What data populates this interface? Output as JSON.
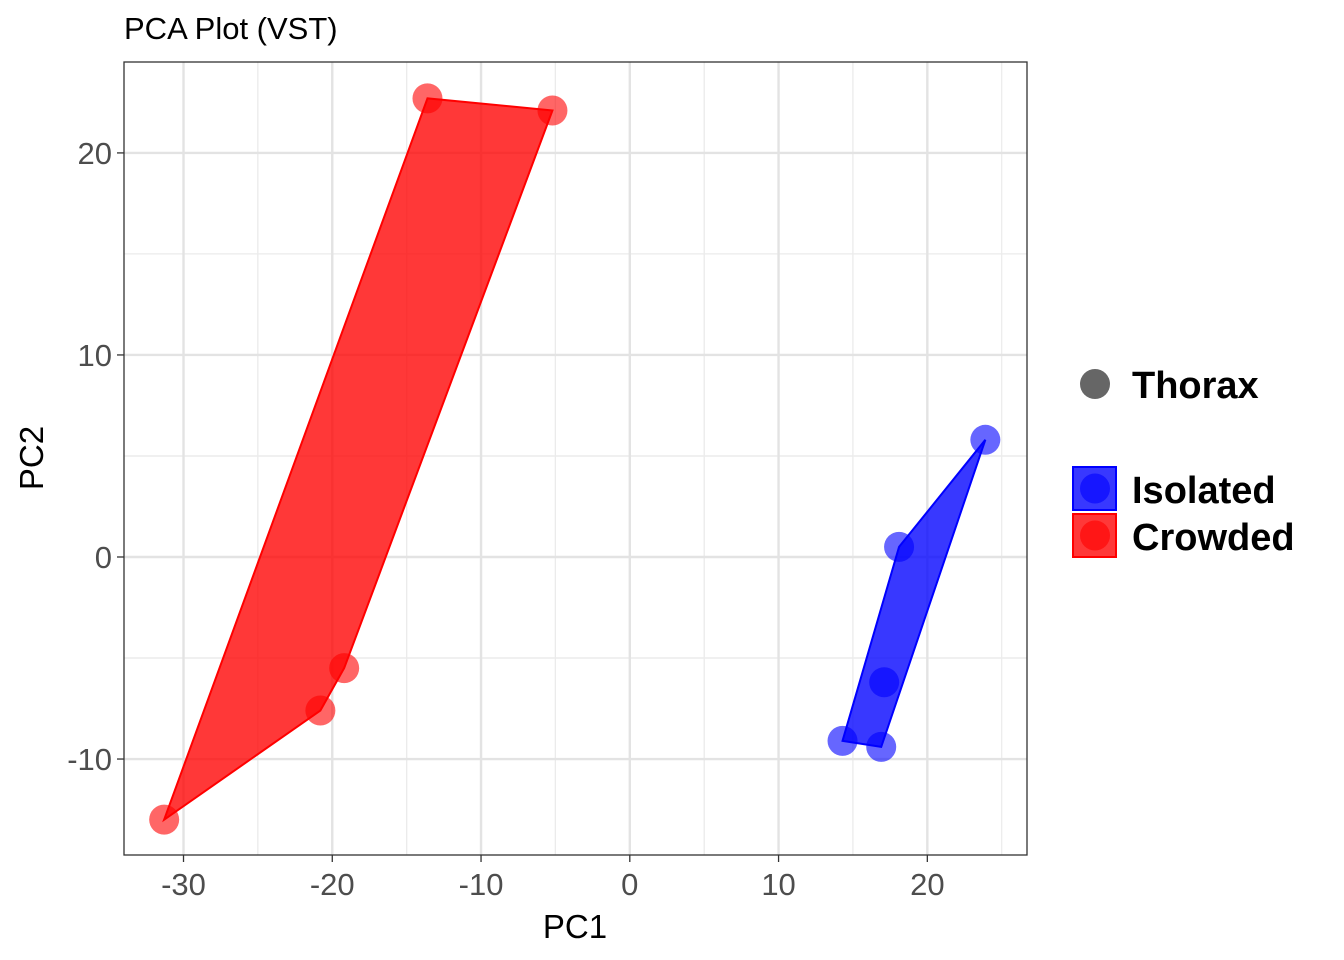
{
  "chart_data": {
    "type": "scatter",
    "title": "PCA Plot (VST)",
    "xlabel": "PC1",
    "ylabel": "PC2",
    "xlim": [
      -34,
      26.7
    ],
    "ylim": [
      -14.75,
      24.5
    ],
    "xticks": [
      -30,
      -20,
      -10,
      0,
      10,
      20
    ],
    "yticks": [
      -10,
      0,
      10,
      20
    ],
    "grid": true,
    "legend_position": "right",
    "shape_legend": {
      "label": "Thorax",
      "color": "#666666"
    },
    "series": [
      {
        "name": "Isolated",
        "color": "#0000FF",
        "points": [
          [
            23.9,
            5.8
          ],
          [
            18.1,
            0.5
          ],
          [
            17.1,
            -6.2
          ],
          [
            14.3,
            -9.1
          ],
          [
            16.9,
            -9.4
          ]
        ]
      },
      {
        "name": "Crowded",
        "color": "#FF0000",
        "points": [
          [
            -13.6,
            22.7
          ],
          [
            -5.2,
            22.1
          ],
          [
            -19.2,
            -5.5
          ],
          [
            -20.8,
            -7.6
          ],
          [
            -31.3,
            -13.0
          ]
        ]
      }
    ],
    "hulls": true
  }
}
